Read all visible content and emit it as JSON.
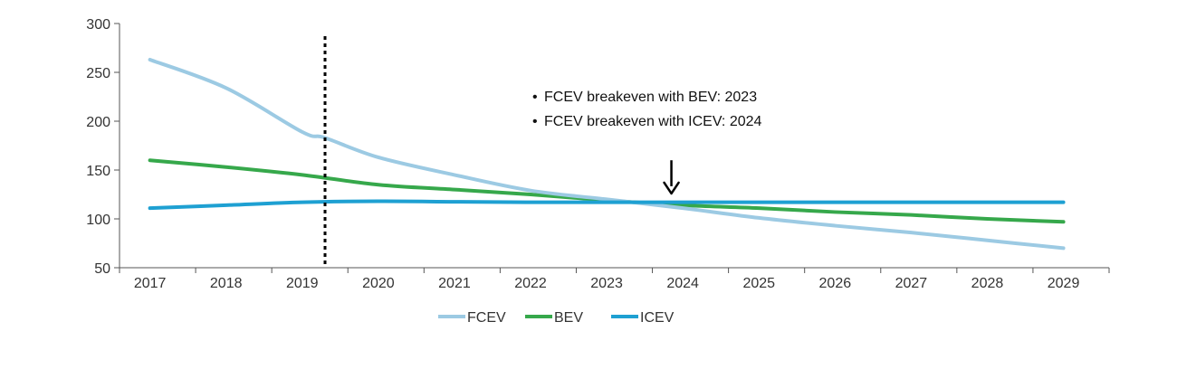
{
  "chart_data": {
    "type": "line",
    "title": "",
    "xlabel": "",
    "ylabel": "",
    "x": [
      2017,
      2018,
      2019,
      2020,
      2021,
      2022,
      2023,
      2024,
      2025,
      2026,
      2027,
      2028,
      2029
    ],
    "x_tick_labels": [
      "2017",
      "2018",
      "2019",
      "2020",
      "2021",
      "2022",
      "2023",
      "2024",
      "2025",
      "2026",
      "2027",
      "2028",
      "2029"
    ],
    "y_ticks": [
      50,
      100,
      150,
      200,
      250,
      300
    ],
    "y_tick_labels": [
      "50",
      "100",
      "150",
      "200",
      "250",
      "300"
    ],
    "xlim": [
      2016.6,
      2029.6
    ],
    "ylim": [
      50,
      300
    ],
    "grid": false,
    "legend_position": "bottom-center",
    "series": [
      {
        "name": "FCEV",
        "color": "#9ccae3",
        "x": [
          2017,
          2018,
          2019,
          2019.3,
          2020,
          2021,
          2022,
          2023,
          2024,
          2025,
          2026,
          2027,
          2028,
          2029
        ],
        "values": [
          263,
          234,
          189,
          183,
          163,
          145,
          129,
          120,
          111,
          101,
          93,
          86,
          78,
          70
        ]
      },
      {
        "name": "BEV",
        "color": "#36a84b",
        "x": [
          2017,
          2018,
          2019,
          2020,
          2021,
          2022,
          2023,
          2024,
          2025,
          2026,
          2027,
          2028,
          2029
        ],
        "values": [
          160,
          153,
          145,
          135,
          130,
          125,
          119,
          114,
          111,
          107,
          104,
          100,
          97
        ]
      },
      {
        "name": "ICEV",
        "color": "#1ea0d2",
        "x": [
          2017,
          2018,
          2019,
          2020,
          2021,
          2022,
          2023,
          2024,
          2025,
          2026,
          2027,
          2028,
          2029
        ],
        "values": [
          111,
          114,
          117,
          118,
          117.5,
          117,
          117,
          117,
          117,
          117,
          117,
          117,
          117
        ]
      }
    ],
    "reference_line": {
      "x": 2019.3,
      "style": "dotted",
      "color": "#000000"
    },
    "annotations": {
      "bullets": [
        "FCEV breakeven with BEV: 2023",
        "FCEV breakeven with ICEV: 2024"
      ],
      "bullet_symbol": "•",
      "arrow": {
        "x": 2023.85,
        "y_from": 160,
        "y_to": 126,
        "color": "#000000"
      }
    }
  }
}
